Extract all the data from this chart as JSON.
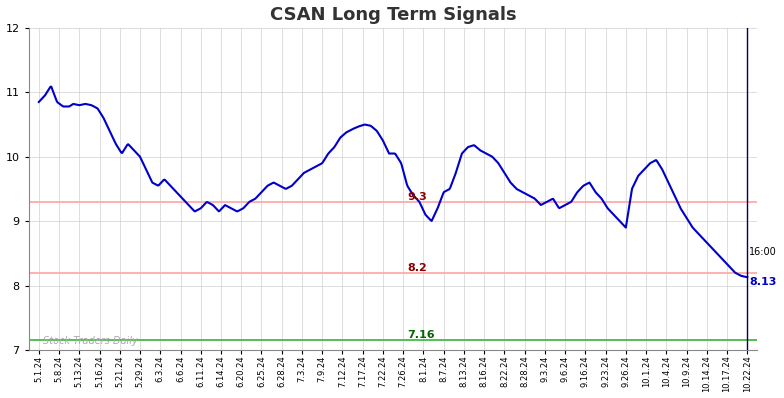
{
  "title": "CSAN Long Term Signals",
  "title_fontsize": 13,
  "title_fontweight": "bold",
  "title_color": "#333333",
  "background_color": "#ffffff",
  "line_color": "#0000cc",
  "line_width": 1.5,
  "ylim": [
    7.0,
    12.0
  ],
  "yticks": [
    7,
    8,
    9,
    10,
    11,
    12
  ],
  "hline_93": {
    "y": 9.3,
    "color": "#ffaaaa",
    "linewidth": 1.3
  },
  "hline_82": {
    "y": 8.2,
    "color": "#ffaaaa",
    "linewidth": 1.3
  },
  "hline_716": {
    "y": 7.16,
    "color": "#44bb44",
    "linewidth": 1.3
  },
  "ann_93_text": "9.3",
  "ann_93_color": "#8b0000",
  "ann_82_text": "8.2",
  "ann_82_color": "#8b0000",
  "ann_716_text": "7.16",
  "ann_716_color": "#006600",
  "ann_1600_text": "16:00",
  "ann_price_text": "8.13",
  "ann_price_color": "#0000cc",
  "watermark": "Stock Traders Daily",
  "watermark_color": "#aaaaaa",
  "grid_color": "#cccccc",
  "xtick_labels": [
    "5.1.24",
    "5.8.24",
    "5.13.24",
    "5.16.24",
    "5.21.24",
    "5.29.24",
    "6.3.24",
    "6.6.24",
    "6.11.24",
    "6.14.24",
    "6.20.24",
    "6.25.24",
    "6.28.24",
    "7.3.24",
    "7.9.24",
    "7.12.24",
    "7.17.24",
    "7.22.24",
    "7.26.24",
    "8.1.24",
    "8.7.24",
    "8.13.24",
    "8.16.24",
    "8.22.24",
    "8.28.24",
    "9.3.24",
    "9.6.24",
    "9.16.24",
    "9.23.24",
    "9.26.24",
    "10.1.24",
    "10.4.24",
    "10.9.24",
    "10.14.24",
    "10.17.24",
    "10.22.24"
  ],
  "control_points_x": [
    0.0,
    0.3,
    0.6,
    0.9,
    1.2,
    1.5,
    1.7,
    2.0,
    2.3,
    2.6,
    2.9,
    3.2,
    3.5,
    3.8,
    4.1,
    4.4,
    4.7,
    5.0,
    5.3,
    5.6,
    5.9,
    6.2,
    6.5,
    6.8,
    7.1,
    7.4,
    7.7,
    8.0,
    8.3,
    8.6,
    8.9,
    9.2,
    9.5,
    9.8,
    10.1,
    10.4,
    10.7,
    11.0,
    11.3,
    11.6,
    11.9,
    12.2,
    12.5,
    12.8,
    13.1,
    13.4,
    13.7,
    14.0,
    14.3,
    14.6,
    14.9,
    15.2,
    15.5,
    15.8,
    16.1,
    16.4,
    16.7,
    17.0,
    17.3,
    17.6,
    17.9,
    18.2,
    18.5,
    18.8,
    19.1,
    19.4,
    19.7,
    20.0,
    20.3,
    20.6,
    20.9,
    21.2,
    21.5,
    21.8,
    22.1,
    22.4,
    22.7,
    23.0,
    23.3,
    23.6,
    23.9,
    24.2,
    24.5,
    24.8,
    25.1,
    25.4,
    25.7,
    26.0,
    26.3,
    26.6,
    26.9,
    27.2,
    27.5,
    27.8,
    28.1,
    28.4,
    28.7,
    29.0,
    29.3,
    29.6,
    29.9,
    30.2,
    30.5,
    30.8,
    31.1,
    31.4,
    31.7,
    32.0,
    32.3,
    32.6,
    32.9,
    33.2,
    33.5,
    33.8,
    34.1,
    34.4,
    34.7,
    35.0
  ],
  "control_points_y": [
    10.85,
    10.95,
    11.1,
    10.85,
    10.78,
    10.78,
    10.82,
    10.8,
    10.82,
    10.8,
    10.75,
    10.6,
    10.4,
    10.2,
    10.05,
    10.2,
    10.1,
    10.0,
    9.8,
    9.6,
    9.55,
    9.65,
    9.55,
    9.45,
    9.35,
    9.25,
    9.15,
    9.2,
    9.3,
    9.25,
    9.15,
    9.25,
    9.2,
    9.15,
    9.2,
    9.3,
    9.35,
    9.45,
    9.55,
    9.6,
    9.55,
    9.5,
    9.55,
    9.65,
    9.75,
    9.8,
    9.85,
    9.9,
    10.05,
    10.15,
    10.3,
    10.38,
    10.43,
    10.47,
    10.5,
    10.48,
    10.4,
    10.25,
    10.05,
    10.05,
    9.9,
    9.55,
    9.4,
    9.3,
    9.1,
    9.0,
    9.2,
    9.45,
    9.5,
    9.75,
    10.05,
    10.15,
    10.18,
    10.1,
    10.05,
    10.0,
    9.9,
    9.75,
    9.6,
    9.5,
    9.45,
    9.4,
    9.35,
    9.25,
    9.3,
    9.35,
    9.2,
    9.25,
    9.3,
    9.45,
    9.55,
    9.6,
    9.45,
    9.35,
    9.2,
    9.1,
    9.0,
    8.9,
    9.5,
    9.7,
    9.8,
    9.9,
    9.95,
    9.8,
    9.6,
    9.4,
    9.2,
    9.05,
    8.9,
    8.8,
    8.7,
    8.6,
    8.5,
    8.4,
    8.3,
    8.2,
    8.15,
    8.13
  ]
}
